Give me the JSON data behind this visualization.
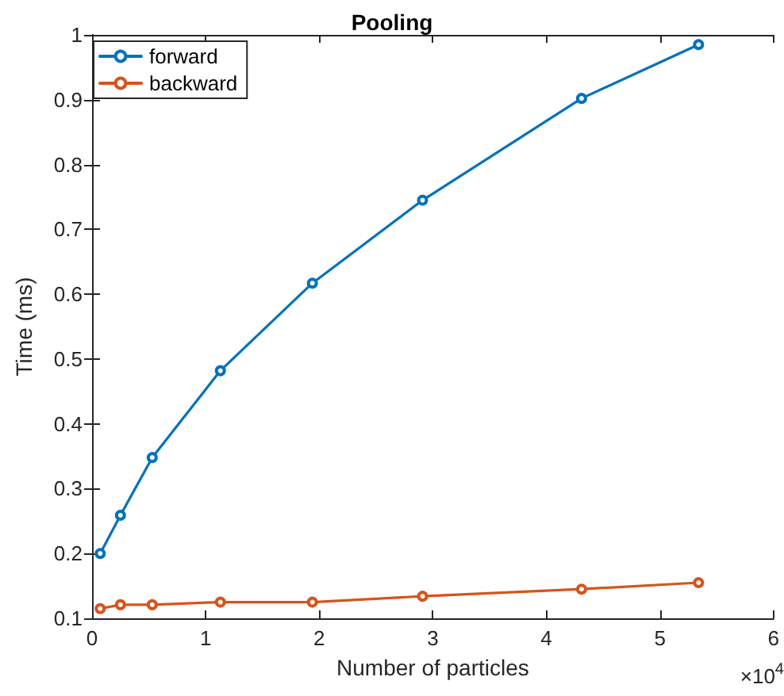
{
  "chart_data": {
    "type": "line",
    "title": "Pooling",
    "xlabel": "Number of particles",
    "ylabel": "Time (ms)",
    "annotations": [
      "×10$^{4}$"
    ],
    "xlim": [
      0,
      6
    ],
    "xticks": [
      0,
      1,
      2,
      3,
      4,
      5,
      6
    ],
    "ylim": [
      0.1,
      1
    ],
    "yticks": [
      0.1,
      0.2,
      0.3,
      0.4,
      0.5,
      0.6,
      0.7,
      0.8,
      0.9,
      1
    ],
    "x": [
      0.072,
      0.25,
      0.53,
      1.13,
      1.94,
      2.91,
      4.31,
      5.34
    ],
    "series": [
      {
        "name": "forward",
        "color": "#0072bd",
        "values": [
          0.2,
          0.259,
          0.348,
          0.482,
          0.617,
          0.745,
          0.902,
          0.985
        ]
      },
      {
        "name": "backward",
        "color": "#d95319",
        "values": [
          0.115,
          0.121,
          0.121,
          0.125,
          0.125,
          0.134,
          0.145,
          0.155
        ]
      }
    ],
    "legend": "top left",
    "grid": false,
    "marker": "circle",
    "line_style": "solid"
  }
}
